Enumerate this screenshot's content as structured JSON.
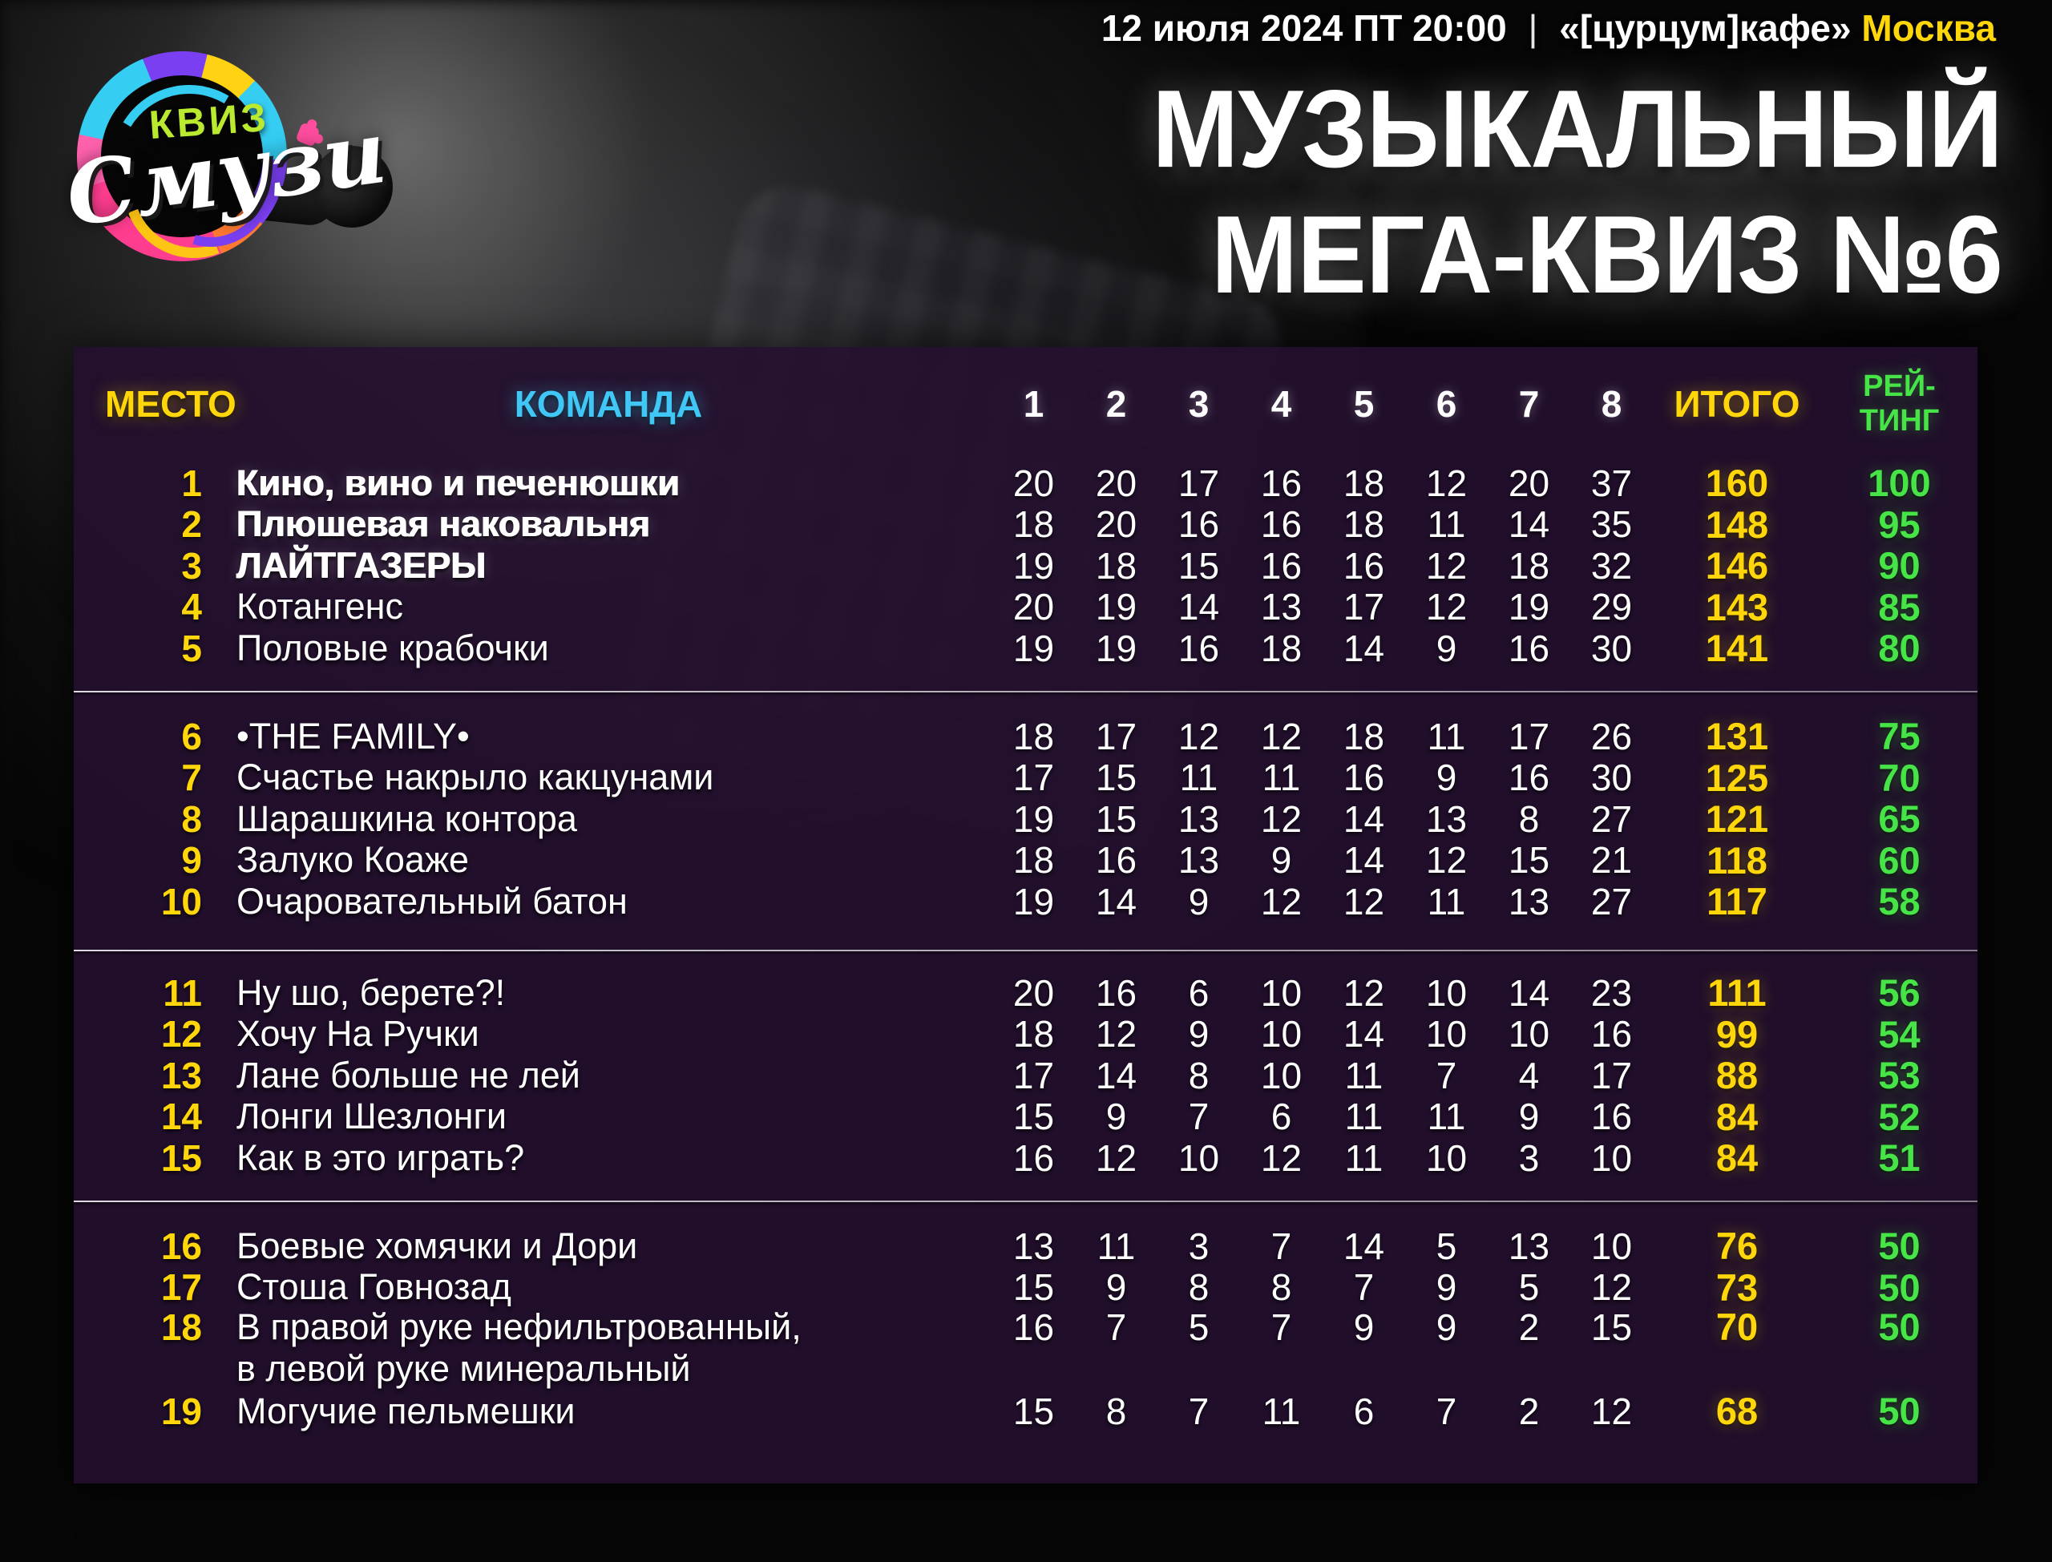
{
  "page": {
    "event_datetime": "12 июля 2024 ПТ 20:00",
    "separator": "|",
    "venue": "«[цурцум]кафе»",
    "city": "Москва",
    "title_line1": "МУЗЫКАЛЬНЫЙ",
    "title_line2": "МЕГА-КВИЗ №6"
  },
  "logo": {
    "word_top": "КВИЗ",
    "word_main": "Смузи"
  },
  "table": {
    "col_place": "МЕСТО",
    "col_team": "КОМАНДА",
    "col_rounds": [
      "1",
      "2",
      "3",
      "4",
      "5",
      "6",
      "7",
      "8"
    ],
    "col_total": "ИТОГО",
    "col_rating_l1": "РЕЙ-",
    "col_rating_l2": "ТИНГ",
    "groups": [
      [
        {
          "place": "1",
          "team": "Кино, вино и печенюшки",
          "bold": true,
          "scores": [
            20,
            20,
            17,
            16,
            18,
            12,
            20,
            37
          ],
          "total": 160,
          "rating": 100
        },
        {
          "place": "2",
          "team": "Плюшевая наковальня",
          "bold": true,
          "scores": [
            18,
            20,
            16,
            16,
            18,
            11,
            14,
            35
          ],
          "total": 148,
          "rating": 95
        },
        {
          "place": "3",
          "team": "ЛАЙТГАЗЕРЫ",
          "bold": true,
          "scores": [
            19,
            18,
            15,
            16,
            16,
            12,
            18,
            32
          ],
          "total": 146,
          "rating": 90
        },
        {
          "place": "4",
          "team": "Котангенс",
          "scores": [
            20,
            19,
            14,
            13,
            17,
            12,
            19,
            29
          ],
          "total": 143,
          "rating": 85
        },
        {
          "place": "5",
          "team": "Половые крабочки",
          "scores": [
            19,
            19,
            16,
            18,
            14,
            9,
            16,
            30
          ],
          "total": 141,
          "rating": 80
        }
      ],
      [
        {
          "place": "6",
          "team": "•THE FAMILY•",
          "scores": [
            18,
            17,
            12,
            12,
            18,
            11,
            17,
            26
          ],
          "total": 131,
          "rating": 75
        },
        {
          "place": "7",
          "team": "Счастье накрыло какцунами",
          "scores": [
            17,
            15,
            11,
            11,
            16,
            9,
            16,
            30
          ],
          "total": 125,
          "rating": 70
        },
        {
          "place": "8",
          "team": "Шарашкина контора",
          "scores": [
            19,
            15,
            13,
            12,
            14,
            13,
            8,
            27
          ],
          "total": 121,
          "rating": 65
        },
        {
          "place": "9",
          "team": "Залуко Коаже",
          "scores": [
            18,
            16,
            13,
            9,
            14,
            12,
            15,
            21
          ],
          "total": 118,
          "rating": 60
        },
        {
          "place": "10",
          "team": "Очаровательный батон",
          "scores": [
            19,
            14,
            9,
            12,
            12,
            11,
            13,
            27
          ],
          "total": 117,
          "rating": 58
        }
      ],
      [
        {
          "place": "11",
          "team": "Ну шо, берете?!",
          "scores": [
            20,
            16,
            6,
            10,
            12,
            10,
            14,
            23
          ],
          "total": 111,
          "rating": 56
        },
        {
          "place": "12",
          "team": "Хочу На Ручки",
          "scores": [
            18,
            12,
            9,
            10,
            14,
            10,
            10,
            16
          ],
          "total": 99,
          "rating": 54
        },
        {
          "place": "13",
          "team": "Лане больше не лей",
          "scores": [
            17,
            14,
            8,
            10,
            11,
            7,
            4,
            17
          ],
          "total": 88,
          "rating": 53
        },
        {
          "place": "14",
          "team": "Лонги Шезлонги",
          "scores": [
            15,
            9,
            7,
            6,
            11,
            11,
            9,
            16
          ],
          "total": 84,
          "rating": 52
        },
        {
          "place": "15",
          "team": "Как в это играть?",
          "scores": [
            16,
            12,
            10,
            12,
            11,
            10,
            3,
            10
          ],
          "total": 84,
          "rating": 51
        }
      ],
      [
        {
          "place": "16",
          "team": "Боевые хомячки и Дори",
          "scores": [
            13,
            11,
            3,
            7,
            14,
            5,
            13,
            10
          ],
          "total": 76,
          "rating": 50
        },
        {
          "place": "17",
          "team": "Стоша Говнозад",
          "scores": [
            15,
            9,
            8,
            8,
            7,
            9,
            5,
            12
          ],
          "total": 73,
          "rating": 50
        },
        {
          "place": "18",
          "team": "В правой руке нефильтрованный,",
          "team2": "в левой руке минеральный",
          "scores": [
            16,
            7,
            5,
            7,
            9,
            9,
            2,
            15
          ],
          "total": 70,
          "rating": 50
        },
        {
          "place": "19",
          "team": "Могучие пельмешки",
          "scores": [
            15,
            8,
            7,
            11,
            6,
            7,
            2,
            12
          ],
          "total": 68,
          "rating": 50
        }
      ]
    ]
  },
  "colors": {
    "accent_yellow": "#ffd60a",
    "accent_green": "#47e447",
    "accent_cyan": "#41c7f5",
    "panel_purple": "#24102f",
    "logo_lime": "#b9ea2f",
    "logo_pink": "#ff3d8f"
  },
  "chart_data": {
    "type": "table",
    "title": "МУЗЫКАЛЬНЫЙ МЕГА-КВИЗ №6",
    "subtitle": "12 июля 2024 ПТ 20:00 | «[цурцум]кафе» Москва",
    "columns": [
      "МЕСТО",
      "КОМАНДА",
      "1",
      "2",
      "3",
      "4",
      "5",
      "6",
      "7",
      "8",
      "ИТОГО",
      "РЕЙТИНГ"
    ],
    "rows": [
      [
        1,
        "Кино, вино и печенюшки",
        20,
        20,
        17,
        16,
        18,
        12,
        20,
        37,
        160,
        100
      ],
      [
        2,
        "Плюшевая наковальня",
        18,
        20,
        16,
        16,
        18,
        11,
        14,
        35,
        148,
        95
      ],
      [
        3,
        "ЛАЙТГАЗЕРЫ",
        19,
        18,
        15,
        16,
        16,
        12,
        18,
        32,
        146,
        90
      ],
      [
        4,
        "Котангенс",
        20,
        19,
        14,
        13,
        17,
        12,
        19,
        29,
        143,
        85
      ],
      [
        5,
        "Половые крабочки",
        19,
        19,
        16,
        18,
        14,
        9,
        16,
        30,
        141,
        80
      ],
      [
        6,
        "•THE FAMILY•",
        18,
        17,
        12,
        12,
        18,
        11,
        17,
        26,
        131,
        75
      ],
      [
        7,
        "Счастье накрыло какцунами",
        17,
        15,
        11,
        11,
        16,
        9,
        16,
        30,
        125,
        70
      ],
      [
        8,
        "Шарашкина контора",
        19,
        15,
        13,
        12,
        14,
        13,
        8,
        27,
        121,
        65
      ],
      [
        9,
        "Залуко Коаже",
        18,
        16,
        13,
        9,
        14,
        12,
        15,
        21,
        118,
        60
      ],
      [
        10,
        "Очаровательный батон",
        19,
        14,
        9,
        12,
        12,
        11,
        13,
        27,
        117,
        58
      ],
      [
        11,
        "Ну шо, берете?!",
        20,
        16,
        6,
        10,
        12,
        10,
        14,
        23,
        111,
        56
      ],
      [
        12,
        "Хочу На Ручки",
        18,
        12,
        9,
        10,
        14,
        10,
        10,
        16,
        99,
        54
      ],
      [
        13,
        "Лане больше не лей",
        17,
        14,
        8,
        10,
        11,
        7,
        4,
        17,
        88,
        53
      ],
      [
        14,
        "Лонги Шезлонги",
        15,
        9,
        7,
        6,
        11,
        11,
        9,
        16,
        84,
        52
      ],
      [
        15,
        "Как в это играть?",
        16,
        12,
        10,
        12,
        11,
        10,
        3,
        10,
        84,
        51
      ],
      [
        16,
        "Боевые хомячки и Дори",
        13,
        11,
        3,
        7,
        14,
        5,
        13,
        10,
        76,
        50
      ],
      [
        17,
        "Стоша Говнозад",
        15,
        9,
        8,
        8,
        7,
        9,
        5,
        12,
        73,
        50
      ],
      [
        18,
        "В правой руке нефильтрованный, в левой руке минеральный",
        16,
        7,
        5,
        7,
        9,
        9,
        2,
        15,
        70,
        50
      ],
      [
        19,
        "Могучие пельмешки",
        15,
        8,
        7,
        11,
        6,
        7,
        2,
        12,
        68,
        50
      ]
    ]
  }
}
